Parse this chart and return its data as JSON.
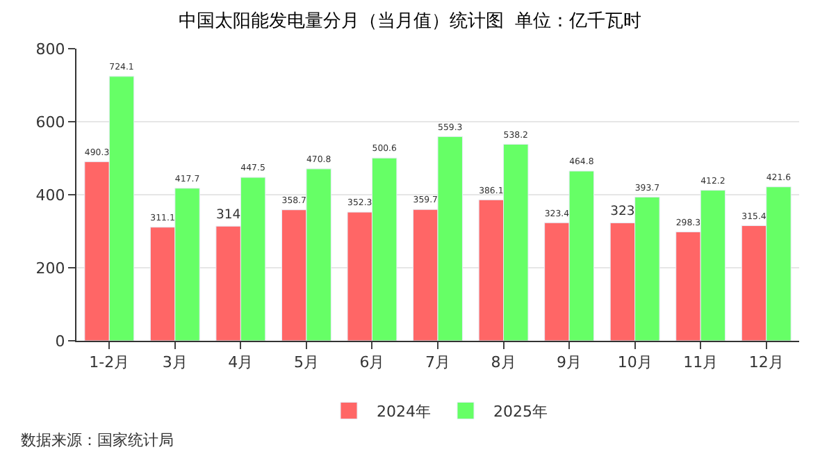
{
  "chart_data": {
    "type": "bar",
    "title": "中国太阳能发电量分月（当月值）统计图  单位：亿千瓦时",
    "categories": [
      "1-2月",
      "3月",
      "4月",
      "5月",
      "6月",
      "7月",
      "8月",
      "9月",
      "10月",
      "11月",
      "12月"
    ],
    "series": [
      {
        "name": "2024年",
        "color": "#ff6666",
        "values": [
          490.3,
          311.1,
          314,
          358.7,
          352.3,
          359.7,
          386.1,
          323.4,
          323,
          298.3,
          315.4
        ]
      },
      {
        "name": "2025年",
        "color": "#66ff66",
        "values": [
          724.1,
          417.7,
          447.5,
          470.8,
          500.6,
          559.3,
          538.2,
          464.8,
          393.7,
          412.2,
          421.6
        ]
      }
    ],
    "ylim": [
      0,
      800
    ],
    "yticks": [
      0,
      200,
      400,
      600,
      800
    ],
    "grid": "y",
    "legend": "bottom",
    "data_labels": true,
    "annotations": [
      "数据来源：国家统计局"
    ]
  }
}
